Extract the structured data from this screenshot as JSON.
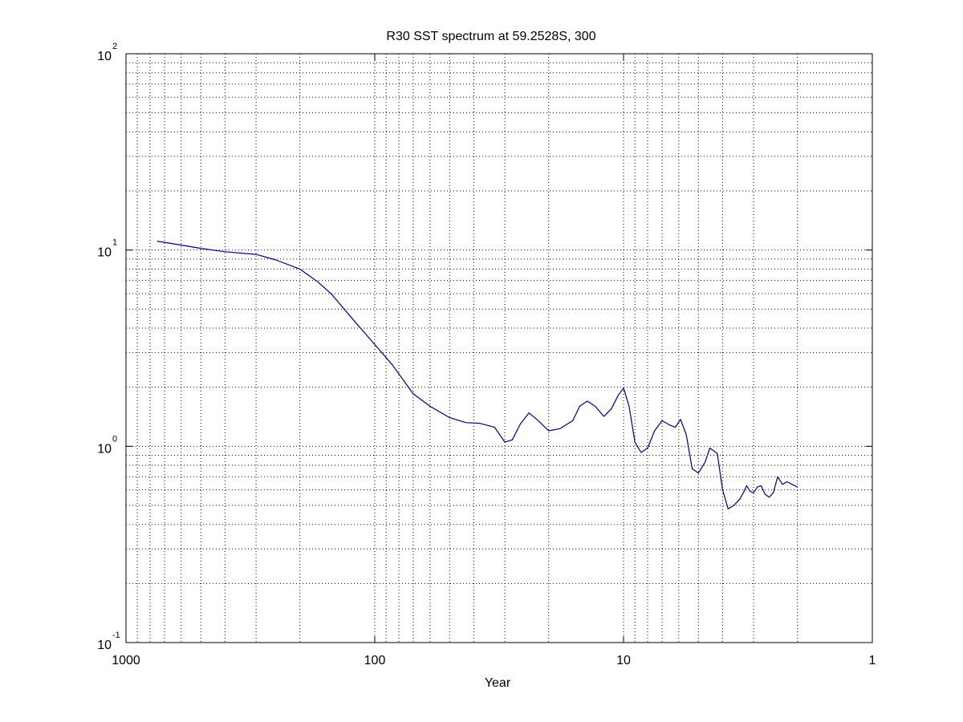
{
  "chart_data": {
    "type": "line",
    "title": "R30 SST spectrum at 59.2528S, 300",
    "xlabel": "Year",
    "ylabel": "",
    "x_scale": "log",
    "y_scale": "log",
    "x_reversed": true,
    "xlim": [
      1000,
      1
    ],
    "ylim": [
      0.1,
      100
    ],
    "grid": true,
    "x_ticks": [
      {
        "value": 1000,
        "label": "1000"
      },
      {
        "value": 100,
        "label": "100"
      },
      {
        "value": 10,
        "label": "10"
      },
      {
        "value": 1,
        "label": "1"
      }
    ],
    "y_ticks": [
      {
        "value": 0.1,
        "base": "10",
        "exp": "-1"
      },
      {
        "value": 1,
        "base": "10",
        "exp": "0"
      },
      {
        "value": 10,
        "base": "10",
        "exp": "1"
      },
      {
        "value": 100,
        "base": "10",
        "exp": "2"
      }
    ],
    "colors": {
      "line": "#000080",
      "axes": "#000000",
      "grid": "#000000"
    },
    "series": [
      {
        "x": [
          750,
          600,
          500,
          400,
          300,
          250,
          200,
          170,
          150,
          120,
          100,
          85,
          70,
          60,
          50,
          43,
          38,
          33,
          30,
          28,
          26,
          24,
          22,
          20,
          18,
          16,
          15,
          14,
          13,
          12,
          11.2,
          10.5,
          10,
          9.5,
          9,
          8.5,
          8,
          7.5,
          7,
          6.5,
          6.2,
          5.9,
          5.6,
          5.3,
          5,
          4.7,
          4.5,
          4.2,
          4,
          3.8,
          3.6,
          3.4,
          3.3,
          3.2,
          3.1,
          3.0,
          2.9,
          2.8,
          2.7,
          2.6,
          2.5,
          2.4,
          2.3,
          2.2,
          2.1,
          2.0
        ],
        "y": [
          11.1,
          10.6,
          10.2,
          9.8,
          9.5,
          8.9,
          8.0,
          6.9,
          6.0,
          4.3,
          3.3,
          2.6,
          1.85,
          1.6,
          1.4,
          1.32,
          1.31,
          1.25,
          1.05,
          1.08,
          1.3,
          1.48,
          1.35,
          1.2,
          1.23,
          1.35,
          1.6,
          1.7,
          1.6,
          1.42,
          1.55,
          1.82,
          1.98,
          1.6,
          1.05,
          0.93,
          0.98,
          1.2,
          1.35,
          1.28,
          1.25,
          1.37,
          1.15,
          0.77,
          0.73,
          0.83,
          0.98,
          0.92,
          0.6,
          0.48,
          0.5,
          0.54,
          0.58,
          0.63,
          0.59,
          0.58,
          0.62,
          0.63,
          0.57,
          0.55,
          0.58,
          0.7,
          0.64,
          0.66,
          0.64,
          0.62
        ]
      }
    ]
  }
}
